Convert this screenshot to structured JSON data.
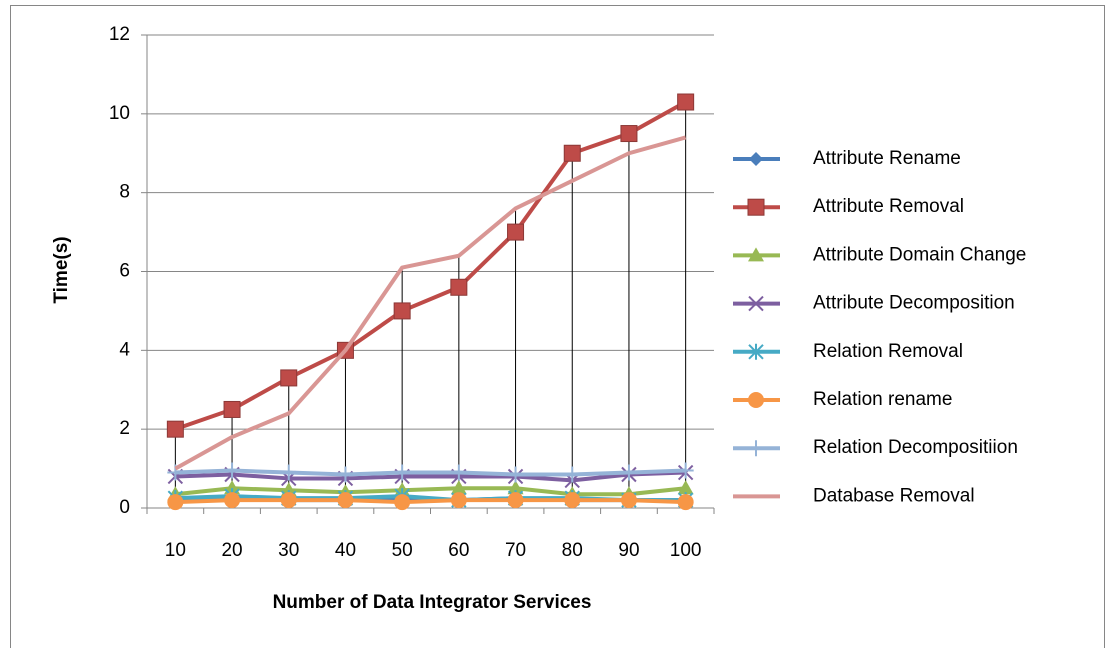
{
  "chart_data": {
    "type": "line",
    "x_label": "Number of Data Integrator Services",
    "y_label": "Time(s)",
    "categories": [
      "10",
      "20",
      "30",
      "40",
      "50",
      "60",
      "70",
      "80",
      "90",
      "100"
    ],
    "ylim": [
      0,
      12
    ],
    "yticks": [
      0,
      2,
      4,
      6,
      8,
      10,
      12
    ],
    "grid": true,
    "drop_lines": true,
    "legend": "right",
    "series": [
      {
        "name": "Attribute Rename",
        "color": "#4a7ebb",
        "marker": "diamond",
        "values": [
          0.2,
          0.25,
          0.2,
          0.2,
          0.2,
          0.2,
          0.25,
          0.2,
          0.2,
          0.2
        ]
      },
      {
        "name": "Attribute Removal",
        "color": "#be4b48",
        "marker": "square",
        "values": [
          2,
          2.5,
          3.3,
          4,
          5,
          5.6,
          7,
          9,
          9.5,
          10.3
        ]
      },
      {
        "name": "Attribute Domain Change",
        "color": "#98b954",
        "marker": "triangle",
        "values": [
          0.35,
          0.5,
          0.45,
          0.4,
          0.45,
          0.5,
          0.5,
          0.35,
          0.35,
          0.5
        ]
      },
      {
        "name": "Attribute Decomposition",
        "color": "#7d5fa0",
        "marker": "x",
        "values": [
          0.8,
          0.85,
          0.75,
          0.75,
          0.8,
          0.8,
          0.8,
          0.7,
          0.85,
          0.9
        ]
      },
      {
        "name": "Relation Removal",
        "color": "#46aac5",
        "marker": "star",
        "values": [
          0.25,
          0.3,
          0.25,
          0.25,
          0.3,
          0.2,
          0.25,
          0.25,
          0.2,
          0.2
        ]
      },
      {
        "name": "Relation rename",
        "color": "#f79646",
        "marker": "circle",
        "values": [
          0.15,
          0.2,
          0.2,
          0.2,
          0.15,
          0.2,
          0.2,
          0.2,
          0.2,
          0.15
        ]
      },
      {
        "name": "Relation Decompositiion",
        "color": "#95b3d7",
        "marker": "plus",
        "values": [
          0.9,
          0.95,
          0.9,
          0.85,
          0.9,
          0.9,
          0.85,
          0.85,
          0.9,
          0.95
        ]
      },
      {
        "name": "Database Removal",
        "color": "#d99694",
        "marker": "none",
        "values": [
          1,
          1.8,
          2.4,
          4,
          6.1,
          6.4,
          7.6,
          8.3,
          9,
          9.4
        ]
      }
    ]
  }
}
